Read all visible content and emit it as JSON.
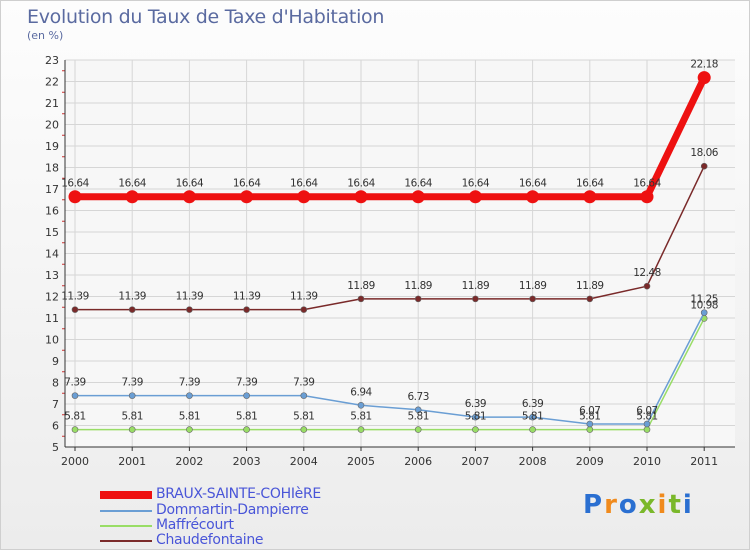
{
  "header": {
    "title": "Evolution du Taux de Taxe d'Habitation",
    "unit": "(en %)"
  },
  "logo": {
    "text": "Proxiti",
    "chars": [
      "P",
      "r",
      "o",
      "x",
      "i",
      "t",
      "i"
    ],
    "colors": [
      "#2a6fd1",
      "#f08a1c",
      "#2a6fd1",
      "#7ab82a",
      "#f08a1c",
      "#7ab82a",
      "#2a6fd1"
    ]
  },
  "chart_data": {
    "type": "line",
    "title": "Evolution du Taux de Taxe d'Habitation",
    "ylabel": "(en %)",
    "xlabel": "",
    "ylim": [
      5,
      23
    ],
    "yticks": [
      5,
      6,
      7,
      8,
      9,
      10,
      11,
      12,
      13,
      14,
      15,
      16,
      17,
      18,
      19,
      20,
      21,
      22,
      23
    ],
    "categories": [
      "2000",
      "2001",
      "2002",
      "2003",
      "2004",
      "2005",
      "2006",
      "2007",
      "2008",
      "2009",
      "2010",
      "2011"
    ],
    "series": [
      {
        "name": "BRAUX-SAINTE-COHIèRE",
        "color": "#ee1111",
        "values": [
          16.64,
          16.64,
          16.64,
          16.64,
          16.64,
          16.64,
          16.64,
          16.64,
          16.64,
          16.64,
          16.64,
          22.18
        ]
      },
      {
        "name": "Dommartin-Dampierre",
        "color": "#6a9ed4",
        "values": [
          7.39,
          7.39,
          7.39,
          7.39,
          7.39,
          6.94,
          6.73,
          6.39,
          6.39,
          6.07,
          6.07,
          11.25
        ]
      },
      {
        "name": "Maffrécourt",
        "color": "#99dd66",
        "values": [
          5.81,
          5.81,
          5.81,
          5.81,
          5.81,
          5.81,
          5.81,
          5.81,
          5.81,
          5.81,
          5.81,
          10.98
        ]
      },
      {
        "name": "Chaudefontaine",
        "color": "#7a2a2a",
        "values": [
          11.39,
          11.39,
          11.39,
          11.39,
          11.39,
          11.89,
          11.89,
          11.89,
          11.89,
          11.89,
          12.48,
          18.06
        ]
      }
    ],
    "value_labels": {
      "BRAUX-SAINTE-COHIèRE": [
        "16.64",
        "16.64",
        "16.64",
        "16.64",
        "16.64",
        "16.64",
        "16.64",
        "16.64",
        "16.64",
        "16.64",
        "16.64",
        "22.18"
      ],
      "Dommartin-Dampierre": [
        "7.39",
        "7.39",
        "7.39",
        "7.39",
        "7.39",
        "6.94",
        "6.73",
        "6.39",
        "6.39",
        "6.07",
        "6.07",
        "11.25"
      ],
      "Maffrécourt": [
        "5.81",
        "5.81",
        "5.81",
        "5.81",
        "5.81",
        "5.81",
        "5.81",
        "5.81",
        "5.81",
        "5.81",
        "5.81",
        "10.98"
      ],
      "Chaudefontaine": [
        "11.39",
        "11.39",
        "11.39",
        "11.39",
        "11.39",
        "11.89",
        "11.89",
        "11.89",
        "11.89",
        "11.89",
        "12.48",
        "18.06"
      ]
    },
    "grid": true,
    "legend": "bottom-left"
  }
}
